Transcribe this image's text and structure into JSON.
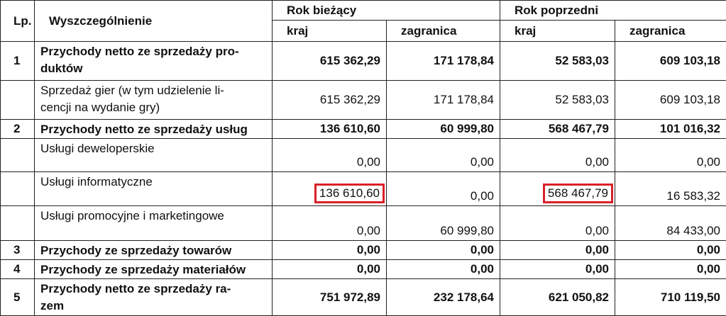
{
  "header": {
    "lp": "Lp.",
    "desc": "Wyszczególnienie",
    "current_year": "Rok bieżący",
    "previous_year": "Rok poprzedni",
    "domestic": "kraj",
    "foreign": "zagranica"
  },
  "rows": [
    {
      "lp": "1",
      "desc_l1": "Przychody netto ze sprzedaży pro-",
      "desc_l2": "duktów",
      "cur_kraj": "615 362,29",
      "cur_zagr": "171 178,84",
      "prev_kraj": "52 583,03",
      "prev_zagr": "609 103,18"
    },
    {
      "lp": "",
      "desc_l1": "Sprzedaż gier (w tym udzielenie li-",
      "desc_l2": "cencji na wydanie gry)",
      "cur_kraj": "615 362,29",
      "cur_zagr": "171 178,84",
      "prev_kraj": "52 583,03",
      "prev_zagr": "609 103,18"
    },
    {
      "lp": "2",
      "desc_l1": "Przychody netto ze sprzedaży usług",
      "cur_kraj": "136 610,60",
      "cur_zagr": "60 999,80",
      "prev_kraj": "568 467,79",
      "prev_zagr": "101 016,32"
    },
    {
      "lp": "",
      "desc_l1": "Usługi deweloperskie",
      "cur_kraj": "0,00",
      "cur_zagr": "0,00",
      "prev_kraj": "0,00",
      "prev_zagr": "0,00"
    },
    {
      "lp": "",
      "desc_l1": "Usługi informatyczne",
      "cur_kraj": "136 610,60",
      "cur_zagr": "0,00",
      "prev_kraj": "568 467,79",
      "prev_zagr": "16 583,32"
    },
    {
      "lp": "",
      "desc_l1": "Usługi promocyjne i marketingowe",
      "cur_kraj": "0,00",
      "cur_zagr": "60 999,80",
      "prev_kraj": "0,00",
      "prev_zagr": "84 433,00"
    },
    {
      "lp": "3",
      "desc_l1": "Przychody ze sprzedaży towarów",
      "cur_kraj": "0,00",
      "cur_zagr": "0,00",
      "prev_kraj": "0,00",
      "prev_zagr": "0,00"
    },
    {
      "lp": "4",
      "desc_l1": "Przychody ze sprzedaży materiałów",
      "cur_kraj": "0,00",
      "cur_zagr": "0,00",
      "prev_kraj": "0,00",
      "prev_zagr": "0,00"
    },
    {
      "lp": "5",
      "desc_l1": "Przychody netto ze sprzedaży ra-",
      "desc_l2": "zem",
      "cur_kraj": "751 972,89",
      "cur_zagr": "232 178,64",
      "prev_kraj": "621 050,82",
      "prev_zagr": "710 119,50"
    }
  ],
  "highlight_color": "#d9202a"
}
